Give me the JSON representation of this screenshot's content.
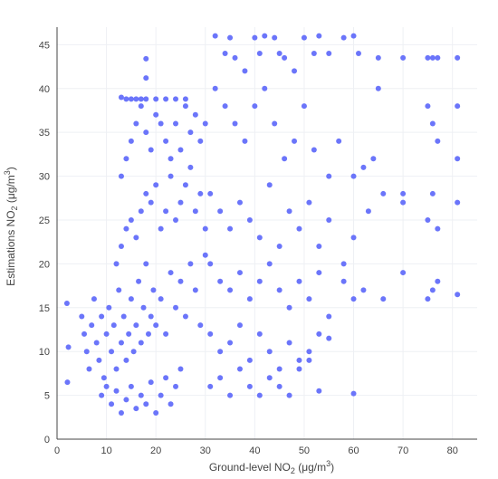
{
  "chart_data": {
    "type": "scatter",
    "title": "",
    "xlabel": {
      "prefix": "Ground-level NO",
      "sub": "2",
      "unit": " (μg/m",
      "sup": "3",
      "close": ")"
    },
    "ylabel": {
      "prefix": "Estimations NO",
      "sub": "2",
      "unit": " (μg/m",
      "sup": "3",
      "close": ")"
    },
    "xlim": [
      0,
      85
    ],
    "ylim": [
      0,
      47
    ],
    "xticks": [
      0,
      10,
      20,
      30,
      40,
      50,
      60,
      70,
      80
    ],
    "yticks": [
      0,
      5,
      10,
      15,
      20,
      25,
      30,
      35,
      40,
      45
    ],
    "grid": true,
    "marker_color": "#636efa",
    "series": [
      {
        "points": [
          [
            2,
            15.5
          ],
          [
            2.3,
            10.5
          ],
          [
            2.1,
            6.5
          ],
          [
            5,
            14
          ],
          [
            5.5,
            12
          ],
          [
            6,
            10
          ],
          [
            6.5,
            8
          ],
          [
            7,
            13
          ],
          [
            7.5,
            16
          ],
          [
            8,
            11
          ],
          [
            8.5,
            9
          ],
          [
            9,
            14
          ],
          [
            9.5,
            7
          ],
          [
            10,
            12
          ],
          [
            10.5,
            15
          ],
          [
            11,
            10
          ],
          [
            11.5,
            13
          ],
          [
            12,
            8
          ],
          [
            12.5,
            17
          ],
          [
            13,
            11
          ],
          [
            13.5,
            14
          ],
          [
            14,
            9
          ],
          [
            14.5,
            12
          ],
          [
            15,
            16
          ],
          [
            15.5,
            10
          ],
          [
            16,
            13
          ],
          [
            16.5,
            18
          ],
          [
            17,
            11
          ],
          [
            17.5,
            15
          ],
          [
            18,
            20
          ],
          [
            18.5,
            12
          ],
          [
            19,
            14
          ],
          [
            19.5,
            17
          ],
          [
            20,
            13
          ],
          [
            21,
            16
          ],
          [
            22,
            12
          ],
          [
            23,
            19
          ],
          [
            24,
            15
          ],
          [
            25,
            18
          ],
          [
            26,
            14
          ],
          [
            27,
            20
          ],
          [
            28,
            17
          ],
          [
            29,
            13
          ],
          [
            30,
            21
          ],
          [
            9,
            5
          ],
          [
            10,
            6
          ],
          [
            11,
            4
          ],
          [
            12,
            5.5
          ],
          [
            13,
            3
          ],
          [
            14,
            4.5
          ],
          [
            15,
            6
          ],
          [
            16,
            3.5
          ],
          [
            17,
            5
          ],
          [
            18,
            4
          ],
          [
            19,
            6.5
          ],
          [
            20,
            3
          ],
          [
            21,
            5
          ],
          [
            22,
            7
          ],
          [
            23,
            4
          ],
          [
            24,
            6
          ],
          [
            25,
            8
          ],
          [
            12,
            20
          ],
          [
            13,
            22
          ],
          [
            14,
            24
          ],
          [
            15,
            25
          ],
          [
            16,
            23
          ],
          [
            17,
            26
          ],
          [
            18,
            28
          ],
          [
            19,
            27
          ],
          [
            20,
            29
          ],
          [
            21,
            24
          ],
          [
            22,
            26
          ],
          [
            23,
            30
          ],
          [
            24,
            25
          ],
          [
            25,
            27
          ],
          [
            26,
            29
          ],
          [
            27,
            31
          ],
          [
            28,
            26
          ],
          [
            29,
            28
          ],
          [
            30,
            24
          ],
          [
            13,
            30
          ],
          [
            14,
            32
          ],
          [
            15,
            34
          ],
          [
            16,
            36
          ],
          [
            17,
            38
          ],
          [
            18,
            35
          ],
          [
            19,
            33
          ],
          [
            20,
            37
          ],
          [
            21,
            36
          ],
          [
            22,
            34
          ],
          [
            23,
            32
          ],
          [
            24,
            36
          ],
          [
            25,
            33
          ],
          [
            26,
            38
          ],
          [
            27,
            35
          ],
          [
            28,
            37
          ],
          [
            29,
            34
          ],
          [
            30,
            36
          ],
          [
            13,
            39
          ],
          [
            14,
            38.8
          ],
          [
            15,
            38.8
          ],
          [
            16,
            38.8
          ],
          [
            17,
            38.8
          ],
          [
            18,
            38.8
          ],
          [
            20,
            38.8
          ],
          [
            22,
            38.8
          ],
          [
            24,
            38.8
          ],
          [
            26,
            38.8
          ],
          [
            18,
            41.2
          ],
          [
            18,
            43.4
          ],
          [
            32,
            46
          ],
          [
            34,
            44
          ],
          [
            35,
            45.8
          ],
          [
            36,
            43.5
          ],
          [
            38,
            42
          ],
          [
            40,
            45.8
          ],
          [
            41,
            44
          ],
          [
            42,
            46
          ],
          [
            44,
            45.8
          ],
          [
            45,
            44
          ],
          [
            46,
            43.5
          ],
          [
            48,
            42
          ],
          [
            50,
            45.8
          ],
          [
            52,
            44
          ],
          [
            53,
            46
          ],
          [
            55,
            44
          ],
          [
            58,
            45.8
          ],
          [
            60,
            46
          ],
          [
            61,
            44
          ],
          [
            65,
            43.5
          ],
          [
            70,
            43.5
          ],
          [
            75,
            43.5
          ],
          [
            76,
            43.5
          ],
          [
            77,
            43.5
          ],
          [
            81,
            43.5
          ],
          [
            32,
            40
          ],
          [
            34,
            38
          ],
          [
            36,
            36
          ],
          [
            38,
            34
          ],
          [
            40,
            38
          ],
          [
            42,
            40
          ],
          [
            44,
            36
          ],
          [
            46,
            32
          ],
          [
            48,
            34
          ],
          [
            50,
            38
          ],
          [
            52,
            33
          ],
          [
            55,
            30
          ],
          [
            57,
            34
          ],
          [
            60,
            30
          ],
          [
            62,
            31
          ],
          [
            64,
            32
          ],
          [
            65,
            40
          ],
          [
            70,
            28
          ],
          [
            75,
            38
          ],
          [
            76,
            36
          ],
          [
            77,
            34
          ],
          [
            81,
            38
          ],
          [
            81,
            32
          ],
          [
            31,
            28
          ],
          [
            33,
            26
          ],
          [
            35,
            24
          ],
          [
            37,
            27
          ],
          [
            39,
            25
          ],
          [
            41,
            23
          ],
          [
            43,
            29
          ],
          [
            45,
            22
          ],
          [
            47,
            26
          ],
          [
            49,
            24
          ],
          [
            51,
            27
          ],
          [
            53,
            22
          ],
          [
            55,
            25
          ],
          [
            58,
            20
          ],
          [
            60,
            23
          ],
          [
            63,
            26
          ],
          [
            66,
            28
          ],
          [
            70,
            27
          ],
          [
            75,
            25
          ],
          [
            76,
            28
          ],
          [
            77,
            24
          ],
          [
            81,
            27
          ],
          [
            31,
            20
          ],
          [
            33,
            18
          ],
          [
            35,
            17
          ],
          [
            37,
            19
          ],
          [
            39,
            16
          ],
          [
            41,
            18
          ],
          [
            43,
            20
          ],
          [
            45,
            17
          ],
          [
            47,
            15
          ],
          [
            49,
            18
          ],
          [
            51,
            16
          ],
          [
            53,
            19
          ],
          [
            55,
            14
          ],
          [
            58,
            18
          ],
          [
            60,
            16
          ],
          [
            62,
            17
          ],
          [
            66,
            16
          ],
          [
            70,
            19
          ],
          [
            75,
            16
          ],
          [
            76,
            17
          ],
          [
            77,
            18
          ],
          [
            81,
            16.5
          ],
          [
            31,
            12
          ],
          [
            33,
            10
          ],
          [
            35,
            11
          ],
          [
            37,
            13
          ],
          [
            39,
            9
          ],
          [
            41,
            12
          ],
          [
            43,
            10
          ],
          [
            45,
            8
          ],
          [
            47,
            11
          ],
          [
            49,
            9
          ],
          [
            51,
            10
          ],
          [
            53,
            12
          ],
          [
            55,
            11.5
          ],
          [
            31,
            6
          ],
          [
            33,
            7
          ],
          [
            35,
            5
          ],
          [
            37,
            8
          ],
          [
            39,
            6
          ],
          [
            41,
            5
          ],
          [
            43,
            7
          ],
          [
            45,
            6
          ],
          [
            47,
            5
          ],
          [
            49,
            8
          ],
          [
            51,
            9
          ],
          [
            53,
            5.5
          ],
          [
            60,
            5.2
          ]
        ]
      }
    ]
  }
}
